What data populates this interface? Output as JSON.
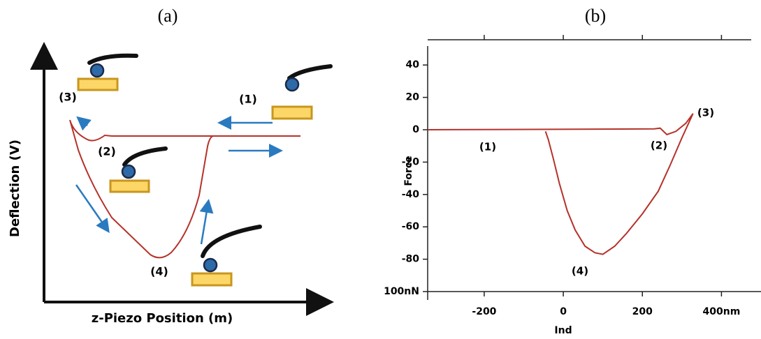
{
  "diagram": {
    "panel_label": "(a)",
    "y_axis_label": "Deflection (V)",
    "x_axis_label": "z-Piezo Position (m)",
    "step_labels": [
      "(1)",
      "(2)",
      "(3)",
      "(4)"
    ]
  },
  "chart_data": {
    "type": "line",
    "panel_label": "(b)",
    "x_label": "Ind",
    "y_label": "Force",
    "x": [
      -343,
      230,
      245,
      262,
      285,
      310,
      328,
      300,
      270,
      240,
      200,
      160,
      130,
      100,
      80,
      55,
      30,
      10,
      -10,
      -25,
      -38,
      -45
    ],
    "values": [
      0,
      0.5,
      1,
      -3,
      -1,
      4,
      10,
      -5,
      -22,
      -38,
      -52,
      -64,
      -72,
      -77,
      -76,
      -72,
      -62,
      -50,
      -33,
      -18,
      -6,
      -1
    ],
    "color": "#b5312a",
    "xlim": [
      -343,
      500
    ],
    "ylim": [
      -100,
      50
    ],
    "xticks": [
      -200,
      0,
      200,
      {
        "value": 400,
        "label": "400nm"
      }
    ],
    "yticks": [
      40,
      20,
      0,
      -20,
      -40,
      -60,
      -80,
      {
        "value": -100,
        "label": "100nN"
      }
    ],
    "annotations": [
      "(1)",
      "(2)",
      "(3)",
      "(4)"
    ]
  }
}
